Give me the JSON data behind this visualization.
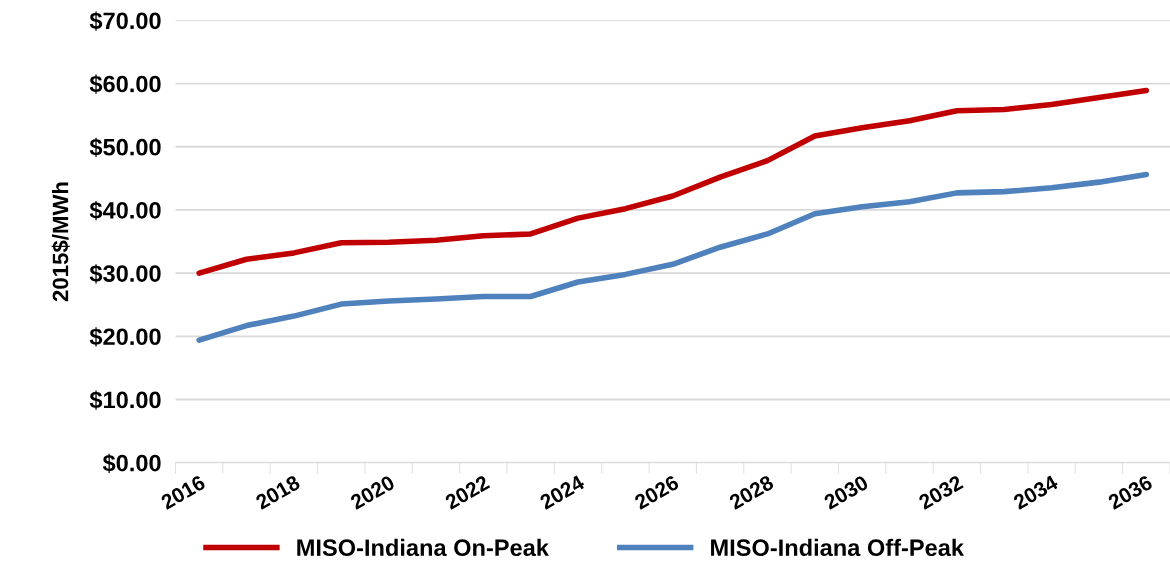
{
  "chart_data": {
    "type": "line",
    "ylabel": "2015$/MWh",
    "categories": [
      "2016",
      null,
      "2018",
      null,
      "2020",
      null,
      "2022",
      null,
      "2024",
      null,
      "2026",
      null,
      "2028",
      null,
      "2030",
      null,
      "2032",
      null,
      "2034",
      null,
      "2036"
    ],
    "series": [
      {
        "name": "MISO-Indiana On-Peak",
        "color": "#c00000",
        "values": [
          30.0,
          32.2,
          33.2,
          34.8,
          34.9,
          35.2,
          35.9,
          36.2,
          38.7,
          40.2,
          42.2,
          45.2,
          47.8,
          51.7,
          53.0,
          54.1,
          55.7,
          55.9,
          56.7,
          57.8,
          58.9
        ]
      },
      {
        "name": "MISO-Indiana Off-Peak",
        "color": "#4f81bd",
        "values": [
          19.4,
          21.7,
          23.2,
          25.1,
          25.6,
          25.9,
          26.3,
          26.3,
          28.6,
          29.8,
          31.4,
          34.1,
          36.2,
          39.4,
          40.5,
          41.3,
          42.7,
          42.9,
          43.5,
          44.4,
          45.6
        ]
      }
    ],
    "ylim": [
      0,
      70
    ],
    "yticks": [
      {
        "value": 0,
        "label": "$0.00"
      },
      {
        "value": 10,
        "label": "$10.00"
      },
      {
        "value": 20,
        "label": "$20.00"
      },
      {
        "value": 30,
        "label": "$30.00"
      },
      {
        "value": 40,
        "label": "$40.00"
      },
      {
        "value": 50,
        "label": "$50.00"
      },
      {
        "value": 60,
        "label": "$60.00"
      },
      {
        "value": 70,
        "label": "$70.00"
      }
    ],
    "grid": "y",
    "legend": "bottom",
    "marker": "none",
    "line_style": "solid"
  }
}
